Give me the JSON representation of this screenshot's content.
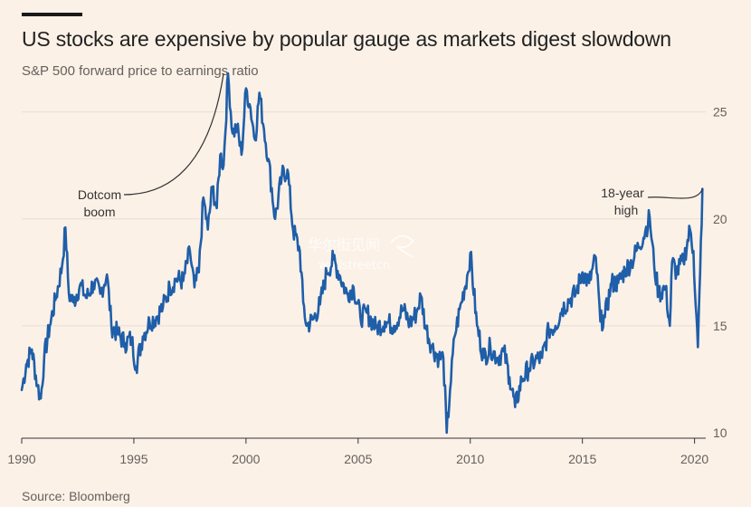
{
  "header": {
    "title": "US stocks are expensive by popular gauge as markets digest slowdown",
    "subtitle": "S&P 500 forward price to earnings ratio"
  },
  "footer": {
    "source": "Source: Bloomberg"
  },
  "colors": {
    "line": "#1f5ea8",
    "background": "#fcf1e7",
    "grid": "#e9ddd2",
    "text": "#66605c"
  },
  "chart_data": {
    "type": "line",
    "title": "US stocks are expensive by popular gauge as markets digest slowdown",
    "subtitle": "S&P 500 forward price to earnings ratio",
    "xlabel": "",
    "ylabel": "",
    "xlim": [
      1990,
      2020.5
    ],
    "ylim": [
      10,
      26
    ],
    "x_ticks": [
      "1990",
      "1995",
      "2000",
      "2005",
      "2010",
      "2015",
      "2020"
    ],
    "y_ticks": [
      "10",
      "15",
      "20",
      "25"
    ],
    "grid": true,
    "y_axis_position": "right",
    "series": [
      {
        "name": "S&P 500 forward P/E",
        "x": [
          1990.0,
          1990.2,
          1990.45,
          1990.7,
          1990.85,
          1991.0,
          1991.25,
          1991.5,
          1991.8,
          1991.95,
          1992.1,
          1992.3,
          1992.6,
          1992.9,
          1993.2,
          1993.5,
          1993.8,
          1994.0,
          1994.3,
          1994.6,
          1994.9,
          1995.1,
          1995.4,
          1995.7,
          1996.0,
          1996.3,
          1996.6,
          1996.9,
          1997.2,
          1997.5,
          1997.7,
          1997.9,
          1998.1,
          1998.3,
          1998.5,
          1998.7,
          1998.85,
          1999.0,
          1999.2,
          1999.4,
          1999.6,
          1999.8,
          2000.0,
          2000.2,
          2000.4,
          2000.6,
          2000.8,
          2001.0,
          2001.3,
          2001.6,
          2001.85,
          2002.1,
          2002.4,
          2002.55,
          2002.7,
          2003.0,
          2003.3,
          2003.6,
          2003.9,
          2004.2,
          2004.5,
          2004.8,
          2005.1,
          2005.4,
          2005.8,
          2006.2,
          2006.6,
          2007.0,
          2007.3,
          2007.6,
          2007.8,
          2008.0,
          2008.3,
          2008.6,
          2008.8,
          2008.95,
          2009.1,
          2009.3,
          2009.6,
          2009.9,
          2010.0,
          2010.3,
          2010.6,
          2010.9,
          2011.2,
          2011.5,
          2011.75,
          2012.0,
          2012.3,
          2012.6,
          2012.9,
          2013.2,
          2013.5,
          2013.8,
          2014.1,
          2014.4,
          2014.7,
          2015.0,
          2015.3,
          2015.6,
          2015.8,
          2016.0,
          2016.3,
          2016.6,
          2016.9,
          2017.2,
          2017.5,
          2017.8,
          2018.0,
          2018.2,
          2018.4,
          2018.7,
          2018.9,
          2019.0,
          2019.2,
          2019.5,
          2019.8,
          2019.95,
          2020.05,
          2020.15,
          2020.25,
          2020.35
        ],
        "y": [
          12.0,
          13.2,
          13.9,
          12.2,
          11.6,
          13.5,
          15.0,
          16.2,
          17.8,
          19.6,
          16.5,
          16.1,
          16.9,
          16.3,
          17.0,
          16.5,
          17.4,
          15.0,
          14.6,
          14.2,
          14.4,
          13.1,
          14.5,
          15.2,
          15.4,
          15.9,
          16.8,
          17.2,
          17.1,
          18.5,
          16.8,
          17.5,
          21.0,
          19.5,
          21.5,
          20.5,
          23.0,
          22.5,
          26.8,
          24.0,
          24.3,
          23.0,
          26.1,
          25.2,
          23.7,
          25.9,
          24.2,
          22.8,
          20.0,
          22.0,
          22.3,
          19.5,
          18.5,
          16.1,
          15.0,
          15.3,
          16.0,
          17.5,
          18.1,
          17.3,
          16.5,
          16.8,
          15.4,
          15.6,
          14.9,
          15.2,
          15.0,
          15.8,
          15.1,
          15.6,
          16.4,
          15.0,
          14.0,
          13.5,
          13.5,
          10.0,
          12.0,
          14.5,
          16.1,
          17.5,
          18.4,
          15.0,
          13.5,
          14.0,
          13.5,
          13.8,
          12.6,
          11.2,
          12.5,
          13.0,
          13.4,
          13.5,
          14.8,
          15.0,
          15.8,
          16.2,
          16.5,
          17.5,
          17.0,
          18.2,
          15.2,
          15.4,
          17.0,
          17.0,
          17.6,
          18.0,
          18.7,
          19.4,
          20.1,
          17.8,
          16.5,
          16.8,
          15.0,
          18.0,
          17.5,
          18.0,
          19.5,
          18.5,
          16.0,
          14.0,
          17.5,
          21.4
        ]
      }
    ],
    "annotations": [
      {
        "text_lines": [
          "Dotcom",
          "boom"
        ],
        "points_to": {
          "x": 1999.0,
          "y": 26.8
        }
      },
      {
        "text_lines": [
          "18-year",
          "high"
        ],
        "points_to": {
          "x": 2020.35,
          "y": 21.4
        }
      }
    ],
    "watermark": {
      "line1": "华尔街见闻",
      "line2": "wallstreetcn"
    }
  }
}
